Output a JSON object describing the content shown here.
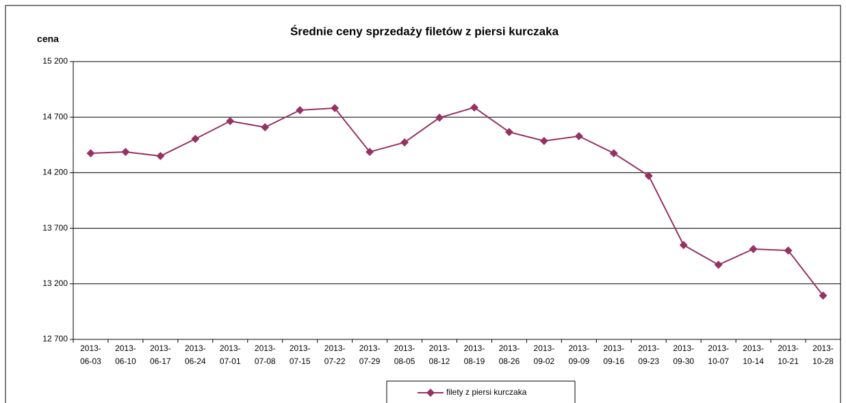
{
  "chart_data": {
    "type": "line",
    "title": "Średnie ceny sprzedaży filetów z piersi kurczaka",
    "y_label": "cena",
    "categories": [
      "2013-06-03",
      "2013-06-10",
      "2013-06-17",
      "2013-06-24",
      "2013-07-01",
      "2013-07-08",
      "2013-07-15",
      "2013-07-22",
      "2013-07-29",
      "2013-08-05",
      "2013-08-12",
      "2013-08-19",
      "2013-08-26",
      "2013-09-02",
      "2013-09-09",
      "2013-09-16",
      "2013-09-23",
      "2013-09-30",
      "2013-10-07",
      "2013-10-14",
      "2013-10-21",
      "2013-10-28"
    ],
    "series": [
      {
        "name": "filety z piersi kurczaka",
        "color": "#953263",
        "values": [
          14375,
          14387,
          14350,
          14504,
          14664,
          14609,
          14763,
          14781,
          14387,
          14473,
          14695,
          14787,
          14566,
          14486,
          14529,
          14375,
          14172,
          13549,
          13371,
          13513,
          13500,
          13094
        ]
      }
    ],
    "ylim": [
      12700,
      15200
    ],
    "yticks": [
      {
        "value": 12700,
        "label": "12 700"
      },
      {
        "value": 13200,
        "label": "13 200"
      },
      {
        "value": 13700,
        "label": "13 700"
      },
      {
        "value": 14200,
        "label": "14 200"
      },
      {
        "value": 14700,
        "label": "14 700"
      },
      {
        "value": 15200,
        "label": "15 200"
      }
    ],
    "grid": true,
    "legend": "bottom"
  }
}
